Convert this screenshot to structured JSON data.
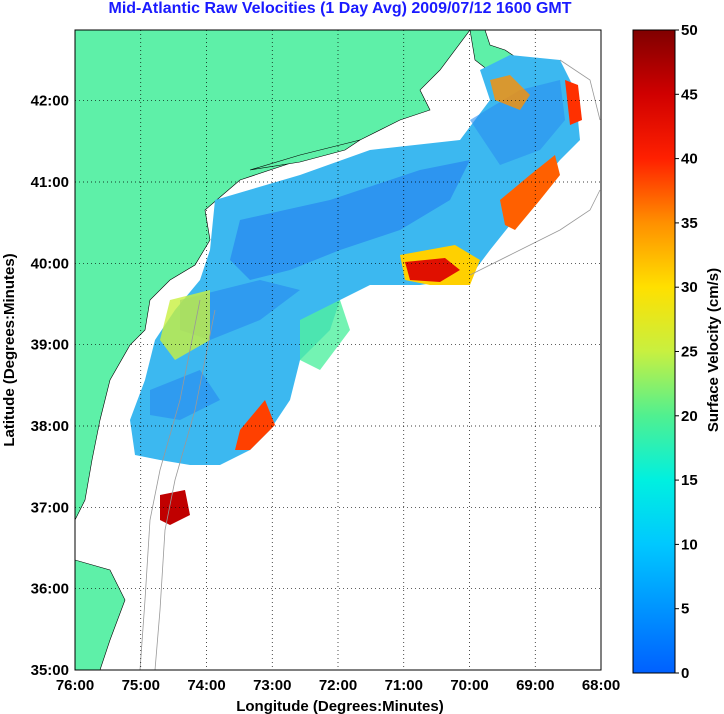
{
  "title": "Mid-Atlantic Raw Velocities (1 Day Avg) 2009/07/12 1600 GMT",
  "xlabel": "Longitude (Degrees:Minutes)",
  "ylabel": "Latitude (Degrees:Minutes)",
  "colorbar_label": "Surface Velocity (cm/s)",
  "x_ticks": [
    "76:00",
    "75:00",
    "74:00",
    "73:00",
    "72:00",
    "71:00",
    "70:00",
    "69:00",
    "68:00"
  ],
  "y_ticks": [
    "35:00",
    "36:00",
    "37:00",
    "38:00",
    "39:00",
    "40:00",
    "41:00",
    "42:00"
  ],
  "colorbar_ticks": [
    "0",
    "5",
    "10",
    "15",
    "20",
    "25",
    "30",
    "35",
    "40",
    "45",
    "50"
  ],
  "colors": {
    "land": "#5ef0a8",
    "title": "#1a1aff",
    "grid": "#000000"
  }
}
